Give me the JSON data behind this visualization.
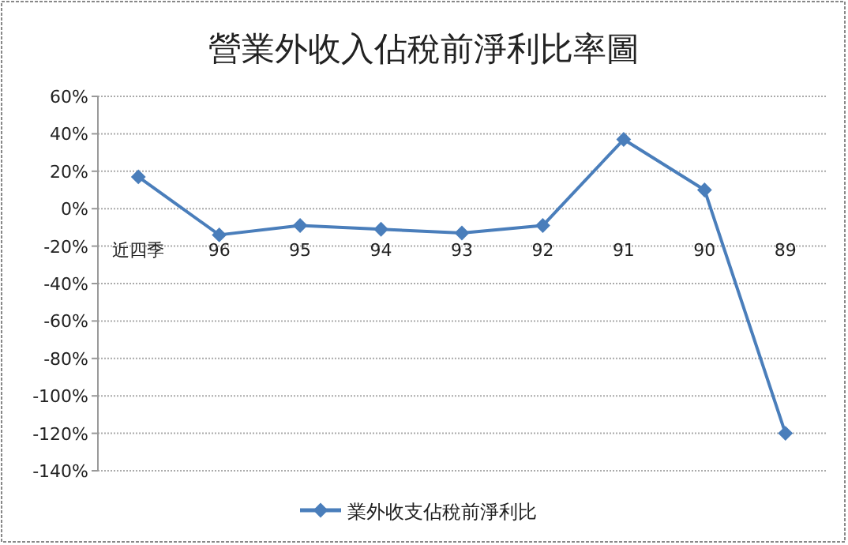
{
  "chart_data": {
    "type": "line",
    "title": "營業外收入佔稅前淨利比率圖",
    "categories": [
      "近四季",
      "96",
      "95",
      "94",
      "93",
      "92",
      "91",
      "90",
      "89"
    ],
    "series": [
      {
        "name": "業外收支佔稅前淨利比",
        "color": "#4a7ebb",
        "values": [
          17,
          -14,
          -9,
          -11,
          -13,
          -9,
          37,
          10,
          -120
        ]
      }
    ],
    "ylim": [
      -140,
      60
    ],
    "yticks": [
      {
        "value": -140,
        "label": "-140%"
      },
      {
        "value": -120,
        "label": "-120%"
      },
      {
        "value": -100,
        "label": "-100%"
      },
      {
        "value": -80,
        "label": "-80%"
      },
      {
        "value": -60,
        "label": "-60%"
      },
      {
        "value": -40,
        "label": "-40%"
      },
      {
        "value": -20,
        "label": "-20%"
      },
      {
        "value": 0,
        "label": "0%"
      },
      {
        "value": 20,
        "label": "20%"
      },
      {
        "value": 40,
        "label": "40%"
      },
      {
        "value": 60,
        "label": "60%"
      }
    ],
    "grid": "y",
    "legend": "bottom",
    "marker": "diamond",
    "line_style": "solid"
  }
}
